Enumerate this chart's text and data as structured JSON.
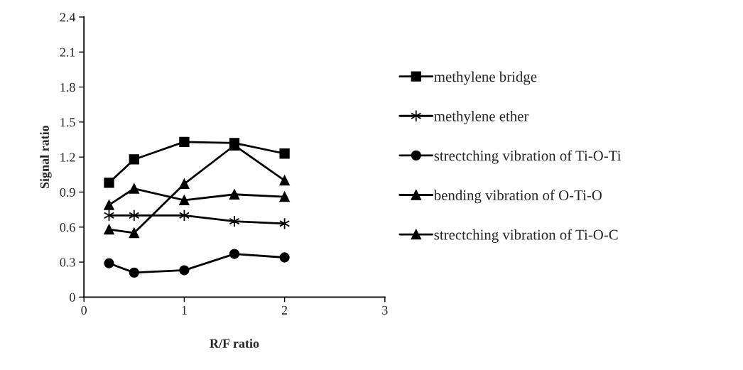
{
  "chart_data": {
    "type": "line",
    "xlabel": "R/F ratio",
    "ylabel": "Signal ratio",
    "x": [
      0.25,
      0.5,
      1,
      1.5,
      2
    ],
    "xlim": [
      0,
      3
    ],
    "xticks": [
      0,
      1,
      2,
      3
    ],
    "ylim": [
      0,
      2.4
    ],
    "yticks": [
      0,
      0.3,
      0.6,
      0.9,
      1.2,
      1.5,
      1.8,
      2.1,
      2.4
    ],
    "grid": false,
    "legend": "right",
    "line_style": "solid",
    "series": [
      {
        "name": "methylene bridge",
        "color": "#000000",
        "marker": "square",
        "values": [
          0.98,
          1.18,
          1.33,
          1.32,
          1.23
        ]
      },
      {
        "name": "methylene ether",
        "color": "#000000",
        "marker": "cross",
        "values": [
          0.7,
          0.7,
          0.7,
          0.65,
          0.63
        ]
      },
      {
        "name": "strectching vibration of Ti-O-Ti",
        "color": "#000000",
        "marker": "circle",
        "values": [
          0.29,
          0.21,
          0.23,
          0.37,
          0.34
        ]
      },
      {
        "name": "bending vibration of O-Ti-O",
        "color": "#000000",
        "marker": "triangle",
        "values": [
          0.58,
          0.55,
          0.97,
          1.3,
          1.0
        ]
      },
      {
        "name": "strectching vibration of Ti-O-C",
        "color": "#000000",
        "marker": "triangle",
        "values": [
          0.79,
          0.93,
          0.83,
          0.88,
          0.86
        ]
      }
    ]
  }
}
